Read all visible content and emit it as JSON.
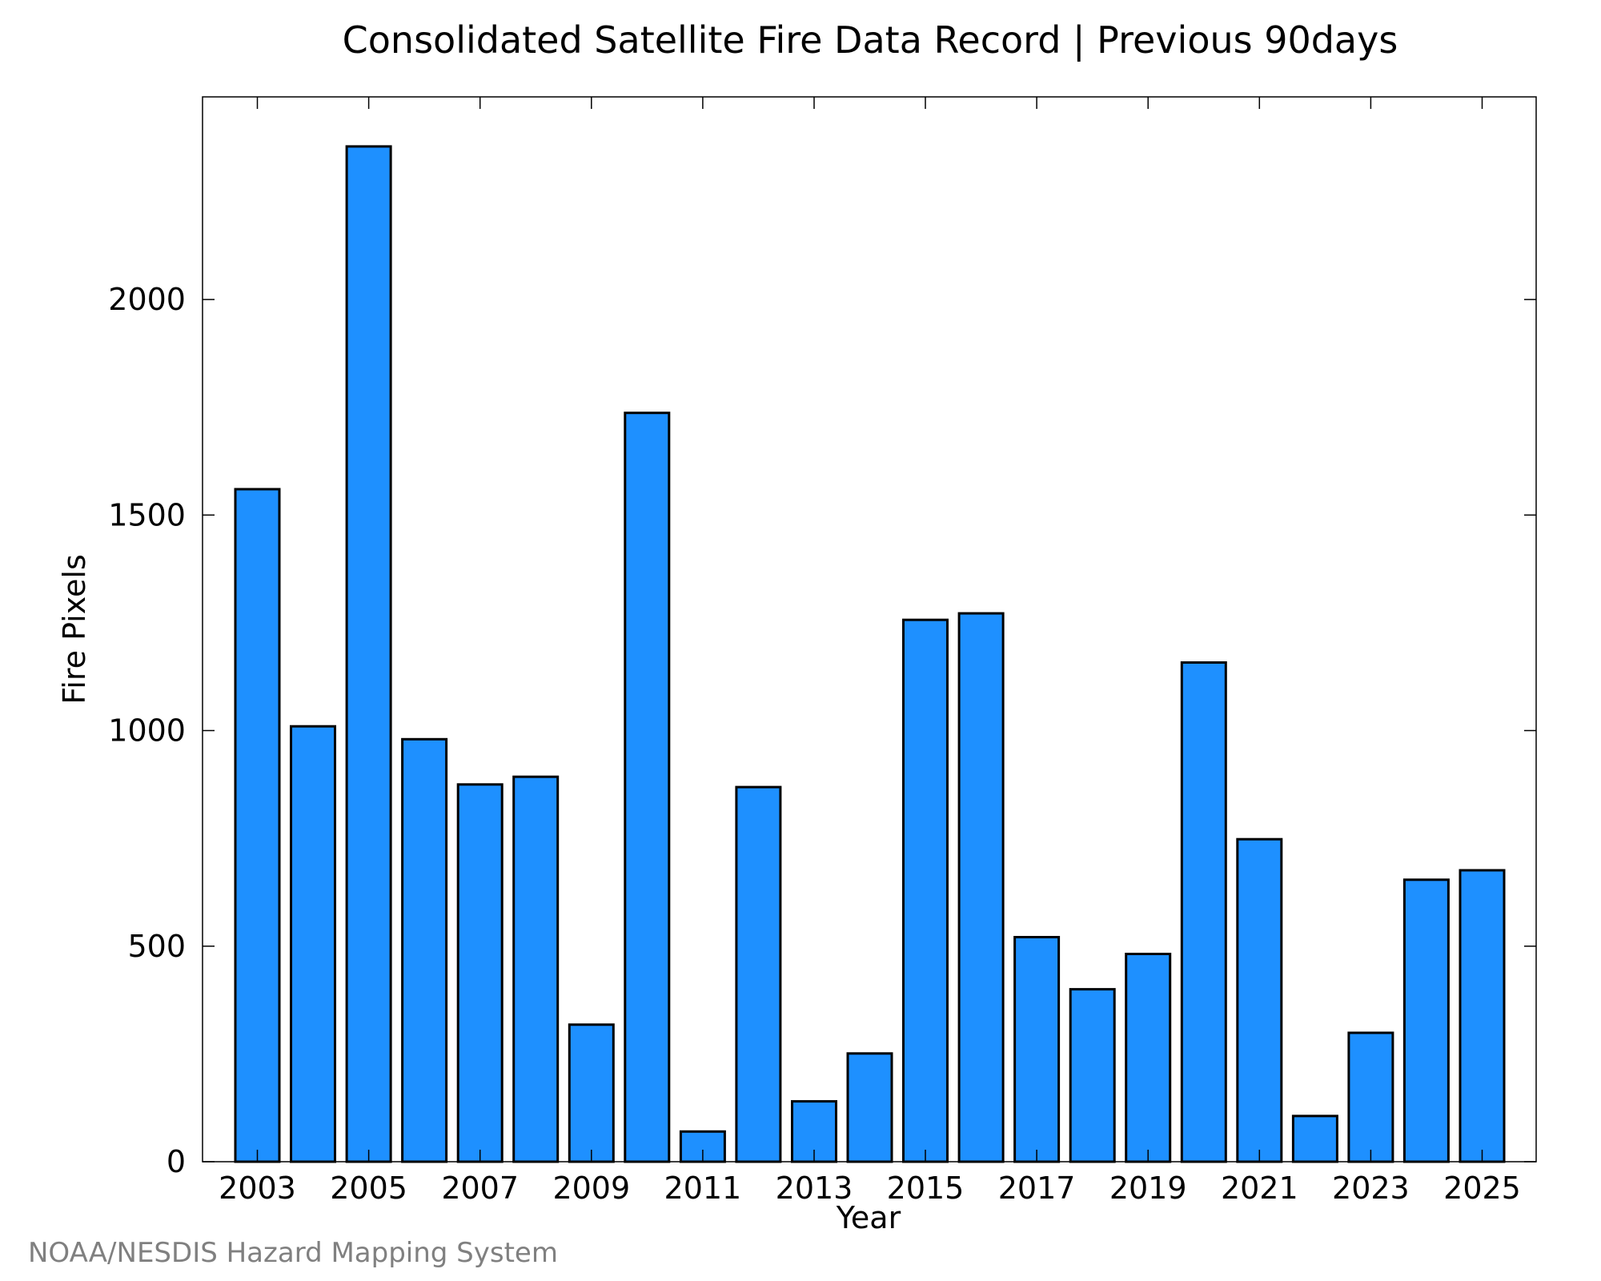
{
  "chart_data": {
    "type": "bar",
    "title": "Consolidated Satellite Fire Data Record | Previous 90days",
    "xlabel": "Year",
    "ylabel": "Fire Pixels",
    "categories": [
      "2003",
      "2004",
      "2005",
      "2006",
      "2007",
      "2008",
      "2009",
      "2010",
      "2011",
      "2012",
      "2013",
      "2014",
      "2015",
      "2016",
      "2017",
      "2018",
      "2019",
      "2020",
      "2021",
      "2022",
      "2023",
      "2024",
      "2025"
    ],
    "values": [
      1560,
      1010,
      2355,
      980,
      875,
      893,
      318,
      1737,
      70,
      869,
      140,
      251,
      1257,
      1272,
      521,
      400,
      482,
      1158,
      748,
      106,
      299,
      654,
      676
    ],
    "xtick_labels": [
      "2003",
      "2005",
      "2007",
      "2009",
      "2011",
      "2013",
      "2015",
      "2017",
      "2019",
      "2021",
      "2023",
      "2025"
    ],
    "yticks": [
      0,
      500,
      1000,
      1500,
      2000
    ],
    "ylim": [
      0,
      2470
    ],
    "grid": false,
    "bar_color": "#1E90FF",
    "bar_edge_color": "#000000"
  },
  "footer": {
    "source": "NOAA/NESDIS Hazard Mapping System"
  }
}
